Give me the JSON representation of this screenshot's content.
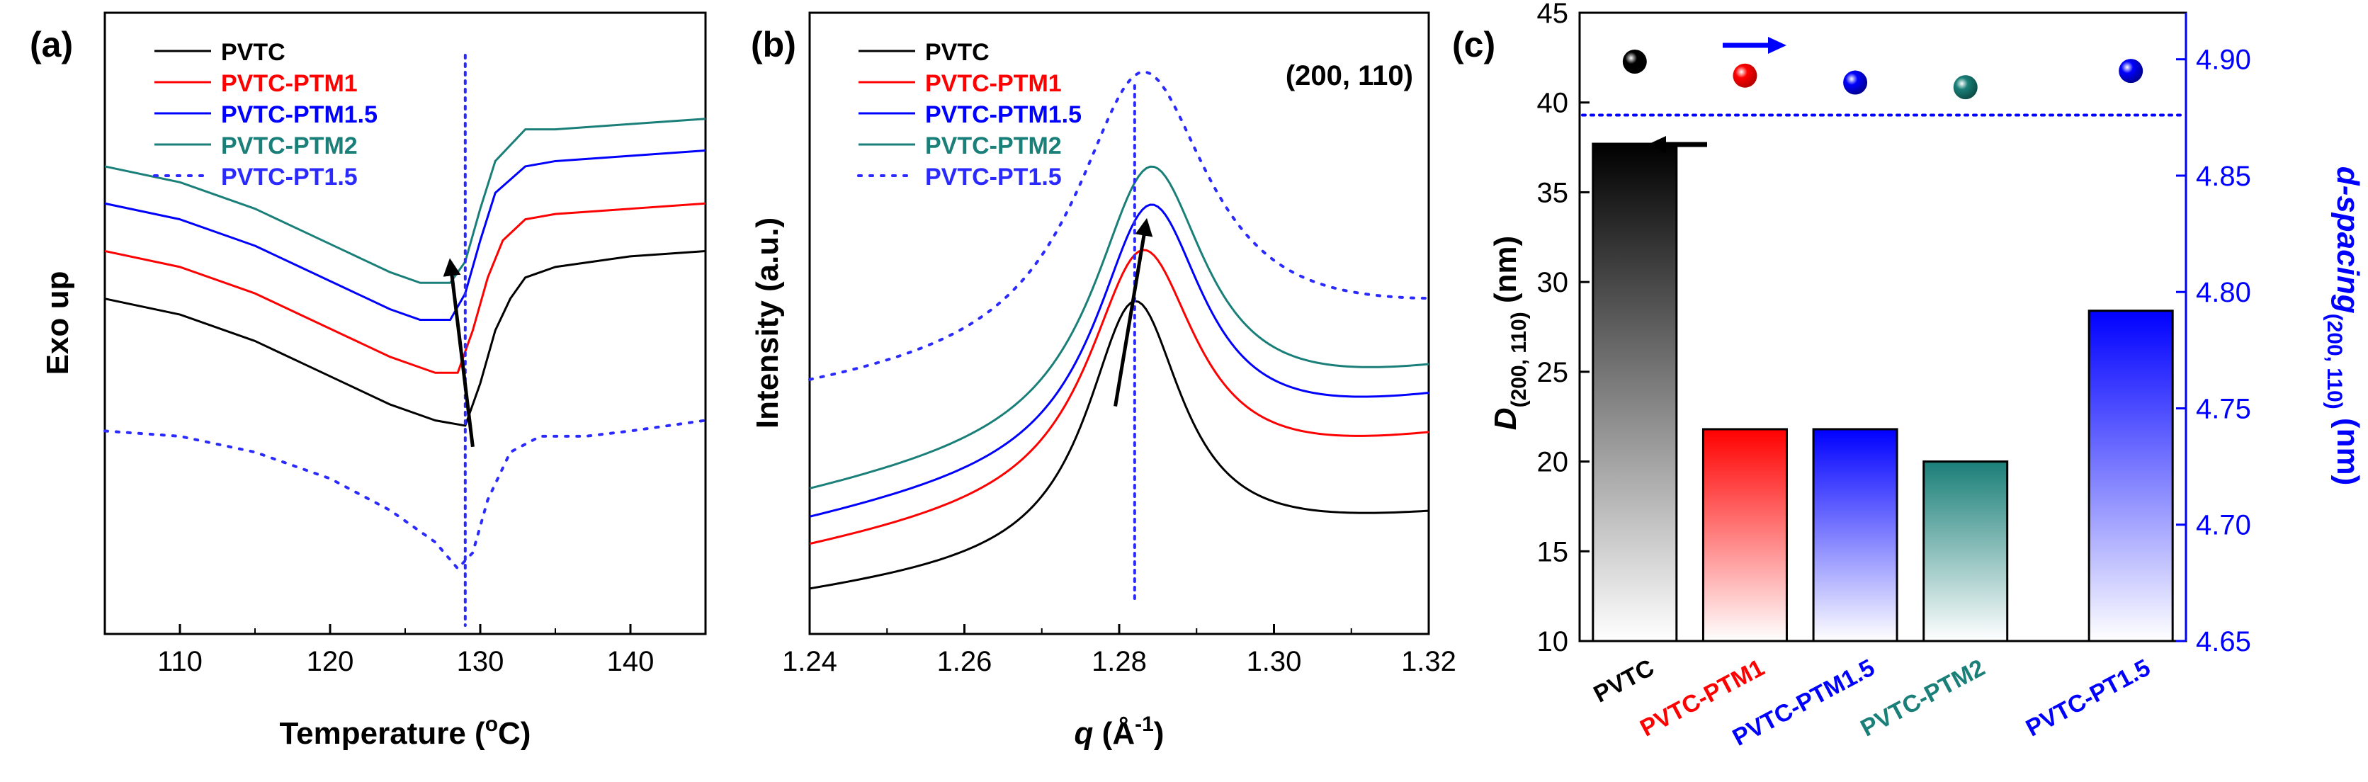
{
  "panel_labels": {
    "a": "(a)",
    "b": "(b)",
    "c": "(c)"
  },
  "colors": {
    "black": "#000000",
    "red": "#ff0000",
    "blue": "#0000ff",
    "teal": "#1a7f78",
    "dotted_blue": "#2a2aff",
    "right_axis": "#0000ff"
  },
  "chart_data": [
    {
      "id": "a",
      "type": "line",
      "title": "",
      "xlabel": "Temperature (oC)",
      "xlabel_parts": [
        "Temperature (",
        "o",
        "C)"
      ],
      "ylabel": "Exo up",
      "xlim": [
        105,
        145
      ],
      "ylim": [
        0,
        100
      ],
      "xticks": [
        110,
        120,
        130,
        140
      ],
      "legend": {
        "position": "top-left",
        "entries": [
          {
            "label": "PVTC",
            "color": "#000000",
            "style": "solid"
          },
          {
            "label": "PVTC-PTM1",
            "color": "#ff0000",
            "style": "solid"
          },
          {
            "label": "PVTC-PTM1.5",
            "color": "#0000ff",
            "style": "solid"
          },
          {
            "label": "PVTC-PTM2",
            "color": "#1a7f78",
            "style": "solid"
          },
          {
            "label": "PVTC-PT1.5",
            "color": "#2a2aff",
            "style": "dotted"
          }
        ]
      },
      "series": [
        {
          "name": "PVTC",
          "x": [
            105,
            110,
            115,
            118,
            121,
            124,
            127,
            129,
            130,
            131,
            132,
            133,
            135,
            140,
            145
          ],
          "y": [
            56,
            53,
            48,
            44,
            40,
            36,
            33,
            32,
            40,
            50,
            56,
            60,
            62,
            64,
            65
          ]
        },
        {
          "name": "PVTC-PTM1",
          "x": [
            105,
            110,
            115,
            118,
            121,
            124,
            127,
            128.5,
            129.5,
            130.5,
            131.5,
            133,
            135,
            140,
            145
          ],
          "y": [
            65,
            62,
            57,
            53,
            49,
            45,
            42,
            42,
            50,
            60,
            67,
            71,
            72,
            73,
            74
          ]
        },
        {
          "name": "PVTC-PTM1.5",
          "x": [
            105,
            110,
            115,
            118,
            121,
            124,
            126,
            128,
            129,
            130,
            131,
            133,
            135,
            140,
            145
          ],
          "y": [
            74,
            71,
            66,
            62,
            58,
            54,
            52,
            52,
            57,
            67,
            76,
            81,
            82,
            83,
            84
          ]
        },
        {
          "name": "PVTC-PTM2",
          "x": [
            105,
            110,
            115,
            118,
            121,
            124,
            126,
            128,
            129,
            130,
            131,
            133,
            135,
            140,
            145
          ],
          "y": [
            81,
            78,
            73,
            69,
            65,
            61,
            59,
            59,
            63,
            73,
            82,
            88,
            88,
            89,
            90
          ]
        },
        {
          "name": "PVTC-PT1.5",
          "x": [
            105,
            110,
            115,
            120,
            124,
            127,
            128.5,
            129.5,
            130.5,
            132,
            134,
            137,
            140,
            145
          ],
          "y": [
            31,
            30,
            27,
            22,
            16,
            10,
            5,
            8,
            18,
            27,
            30,
            30,
            31,
            33
          ]
        }
      ],
      "vline_x": 129,
      "arrow": {
        "from": [
          129.5,
          28
        ],
        "to": [
          128,
          63
        ]
      }
    },
    {
      "id": "b",
      "type": "line",
      "title": "(200, 110)",
      "xlabel": "q (Å-1)",
      "xlabel_parts": [
        "q",
        " (Å",
        "-1",
        ")"
      ],
      "ylabel": "Intensity (a.u.)",
      "xlim": [
        1.24,
        1.32
      ],
      "ylim": [
        0,
        100
      ],
      "xticks": [
        "1.24",
        "1.26",
        "1.28",
        "1.30",
        "1.32"
      ],
      "legend": {
        "position": "top-left",
        "entries": [
          {
            "label": "PVTC",
            "color": "#000000",
            "style": "solid"
          },
          {
            "label": "PVTC-PTM1",
            "color": "#ff0000",
            "style": "solid"
          },
          {
            "label": "PVTC-PTM1.5",
            "color": "#0000ff",
            "style": "solid"
          },
          {
            "label": "PVTC-PTM2",
            "color": "#1a7f78",
            "style": "solid"
          },
          {
            "label": "PVTC-PT1.5",
            "color": "#2a2aff",
            "style": "dotted"
          }
        ]
      },
      "series": [
        {
          "name": "PVTC",
          "center": 1.282,
          "baseline": 3,
          "height": 47,
          "width": 0.0075,
          "slope": 14
        },
        {
          "name": "PVTC-PTM1",
          "center": 1.283,
          "baseline": 11,
          "height": 45,
          "width": 0.0085,
          "slope": 20
        },
        {
          "name": "PVTC-PTM1.5",
          "center": 1.284,
          "baseline": 16,
          "height": 47,
          "width": 0.0085,
          "slope": 22
        },
        {
          "name": "PVTC-PTM2",
          "center": 1.284,
          "baseline": 21,
          "height": 49,
          "width": 0.0088,
          "slope": 22
        },
        {
          "name": "PVTC-PT1.5",
          "center": 1.283,
          "baseline": 40,
          "height": 52,
          "width": 0.0105,
          "slope": 14
        }
      ],
      "vline_x": 1.282,
      "arrow": {
        "from": [
          1.2795,
          38
        ],
        "to": [
          1.2835,
          72
        ]
      }
    },
    {
      "id": "c",
      "type": "bar",
      "title": "",
      "categories": [
        "PVTC",
        "PVTC-PTM1",
        "PVTC-PTM1.5",
        "PVTC-PTM2",
        "PVTC-PT1.5"
      ],
      "category_colors": [
        "#000000",
        "#ff0000",
        "#0000ff",
        "#1a7f78",
        "#0000ff"
      ],
      "category_positions": [
        1,
        2,
        3,
        4,
        5.5
      ],
      "xlim": [
        0.5,
        6
      ],
      "values": [
        37.7,
        21.8,
        21.8,
        20.0,
        28.4
      ],
      "ylabel": "D(200,110) (nm)",
      "ylabel_parts": [
        "D",
        "(200, 110)",
        " (nm)"
      ],
      "ylim": [
        10,
        45
      ],
      "yticks": [
        10,
        15,
        20,
        25,
        30,
        35,
        40,
        45
      ],
      "y2label": "d-spacing(200, 110) (nm)",
      "y2label_parts": [
        "d-spacing",
        "(200, 110)",
        " (nm)"
      ],
      "y2lim": [
        4.65,
        4.92
      ],
      "y2ticks": [
        "4.65",
        "4.70",
        "4.75",
        "4.80",
        "4.85",
        "4.90"
      ],
      "y2values": [
        4.899,
        4.893,
        4.89,
        4.888,
        4.895
      ],
      "hline_y2": 4.876
    }
  ]
}
